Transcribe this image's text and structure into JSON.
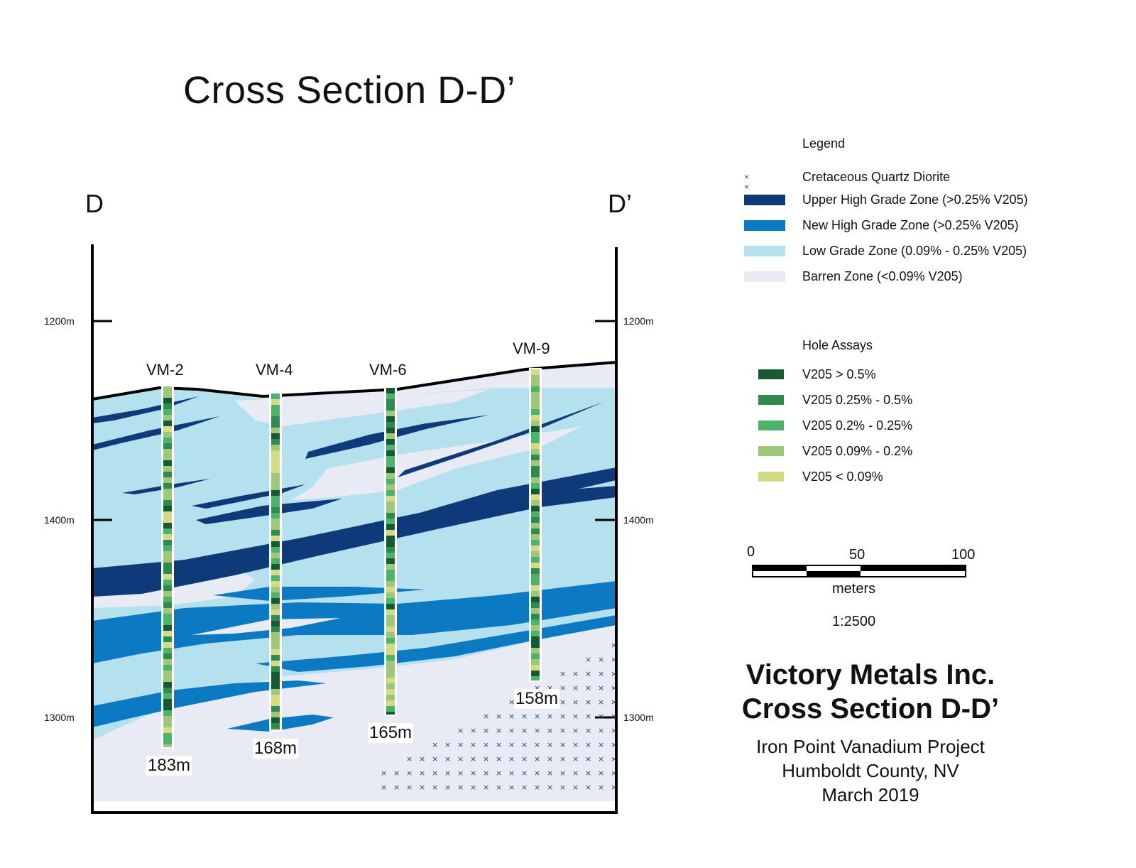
{
  "title": "Cross Section D-D’",
  "section_ends": {
    "left": "D",
    "right": "D’"
  },
  "elevations": [
    "1200m",
    "1400m",
    "1300m"
  ],
  "drill_holes": [
    {
      "name": "VM-2",
      "depth": "183m"
    },
    {
      "name": "VM-4",
      "depth": "168m"
    },
    {
      "name": "VM-6",
      "depth": "165m"
    },
    {
      "name": "VM-9",
      "depth": "158m"
    }
  ],
  "legend": {
    "title": "Legend",
    "items": [
      {
        "label": "Cretaceous Quartz Diorite",
        "symbol": "cross-pattern-icon",
        "color": "#1b4f6a"
      },
      {
        "label": "Upper High Grade Zone (>0.25% V205)",
        "color": "#0f3a7a"
      },
      {
        "label": "New High Grade Zone (>0.25% V205)",
        "color": "#0b7ac2"
      },
      {
        "label": "Low Grade Zone (0.09% - 0.25% V205)",
        "color": "#b5e0ee"
      },
      {
        "label": "Barren Zone (<0.09% V205)",
        "color": "#e8eaf4"
      }
    ]
  },
  "hole_assays": {
    "title": "Hole Assays",
    "items": [
      {
        "label": "V205 > 0.5%",
        "color": "#155a33"
      },
      {
        "label": "V205 0.25% - 0.5%",
        "color": "#2f8a4f"
      },
      {
        "label": "V205 0.2% - 0.25%",
        "color": "#4db36a"
      },
      {
        "label": "V205 0.09% - 0.2%",
        "color": "#9ec77a"
      },
      {
        "label": "V205 < 0.09%",
        "color": "#d3dc84"
      }
    ]
  },
  "scale_bar": {
    "ticks": [
      "0",
      "50",
      "100"
    ],
    "unit": "meters",
    "ratio": "1:2500"
  },
  "company": {
    "name": "Victory Metals Inc.",
    "section": "Cross Section D-D’"
  },
  "project": {
    "name": "Iron Point Vanadium Project",
    "location": "Humboldt County, NV",
    "date": "March 2019"
  },
  "colors": {
    "upper_high_grade": "#0f3a7a",
    "new_high_grade": "#0b7ac2",
    "low_grade": "#b5e0ee",
    "barren": "#e8eaf4",
    "diorite_marks": "#1b4f6a"
  }
}
